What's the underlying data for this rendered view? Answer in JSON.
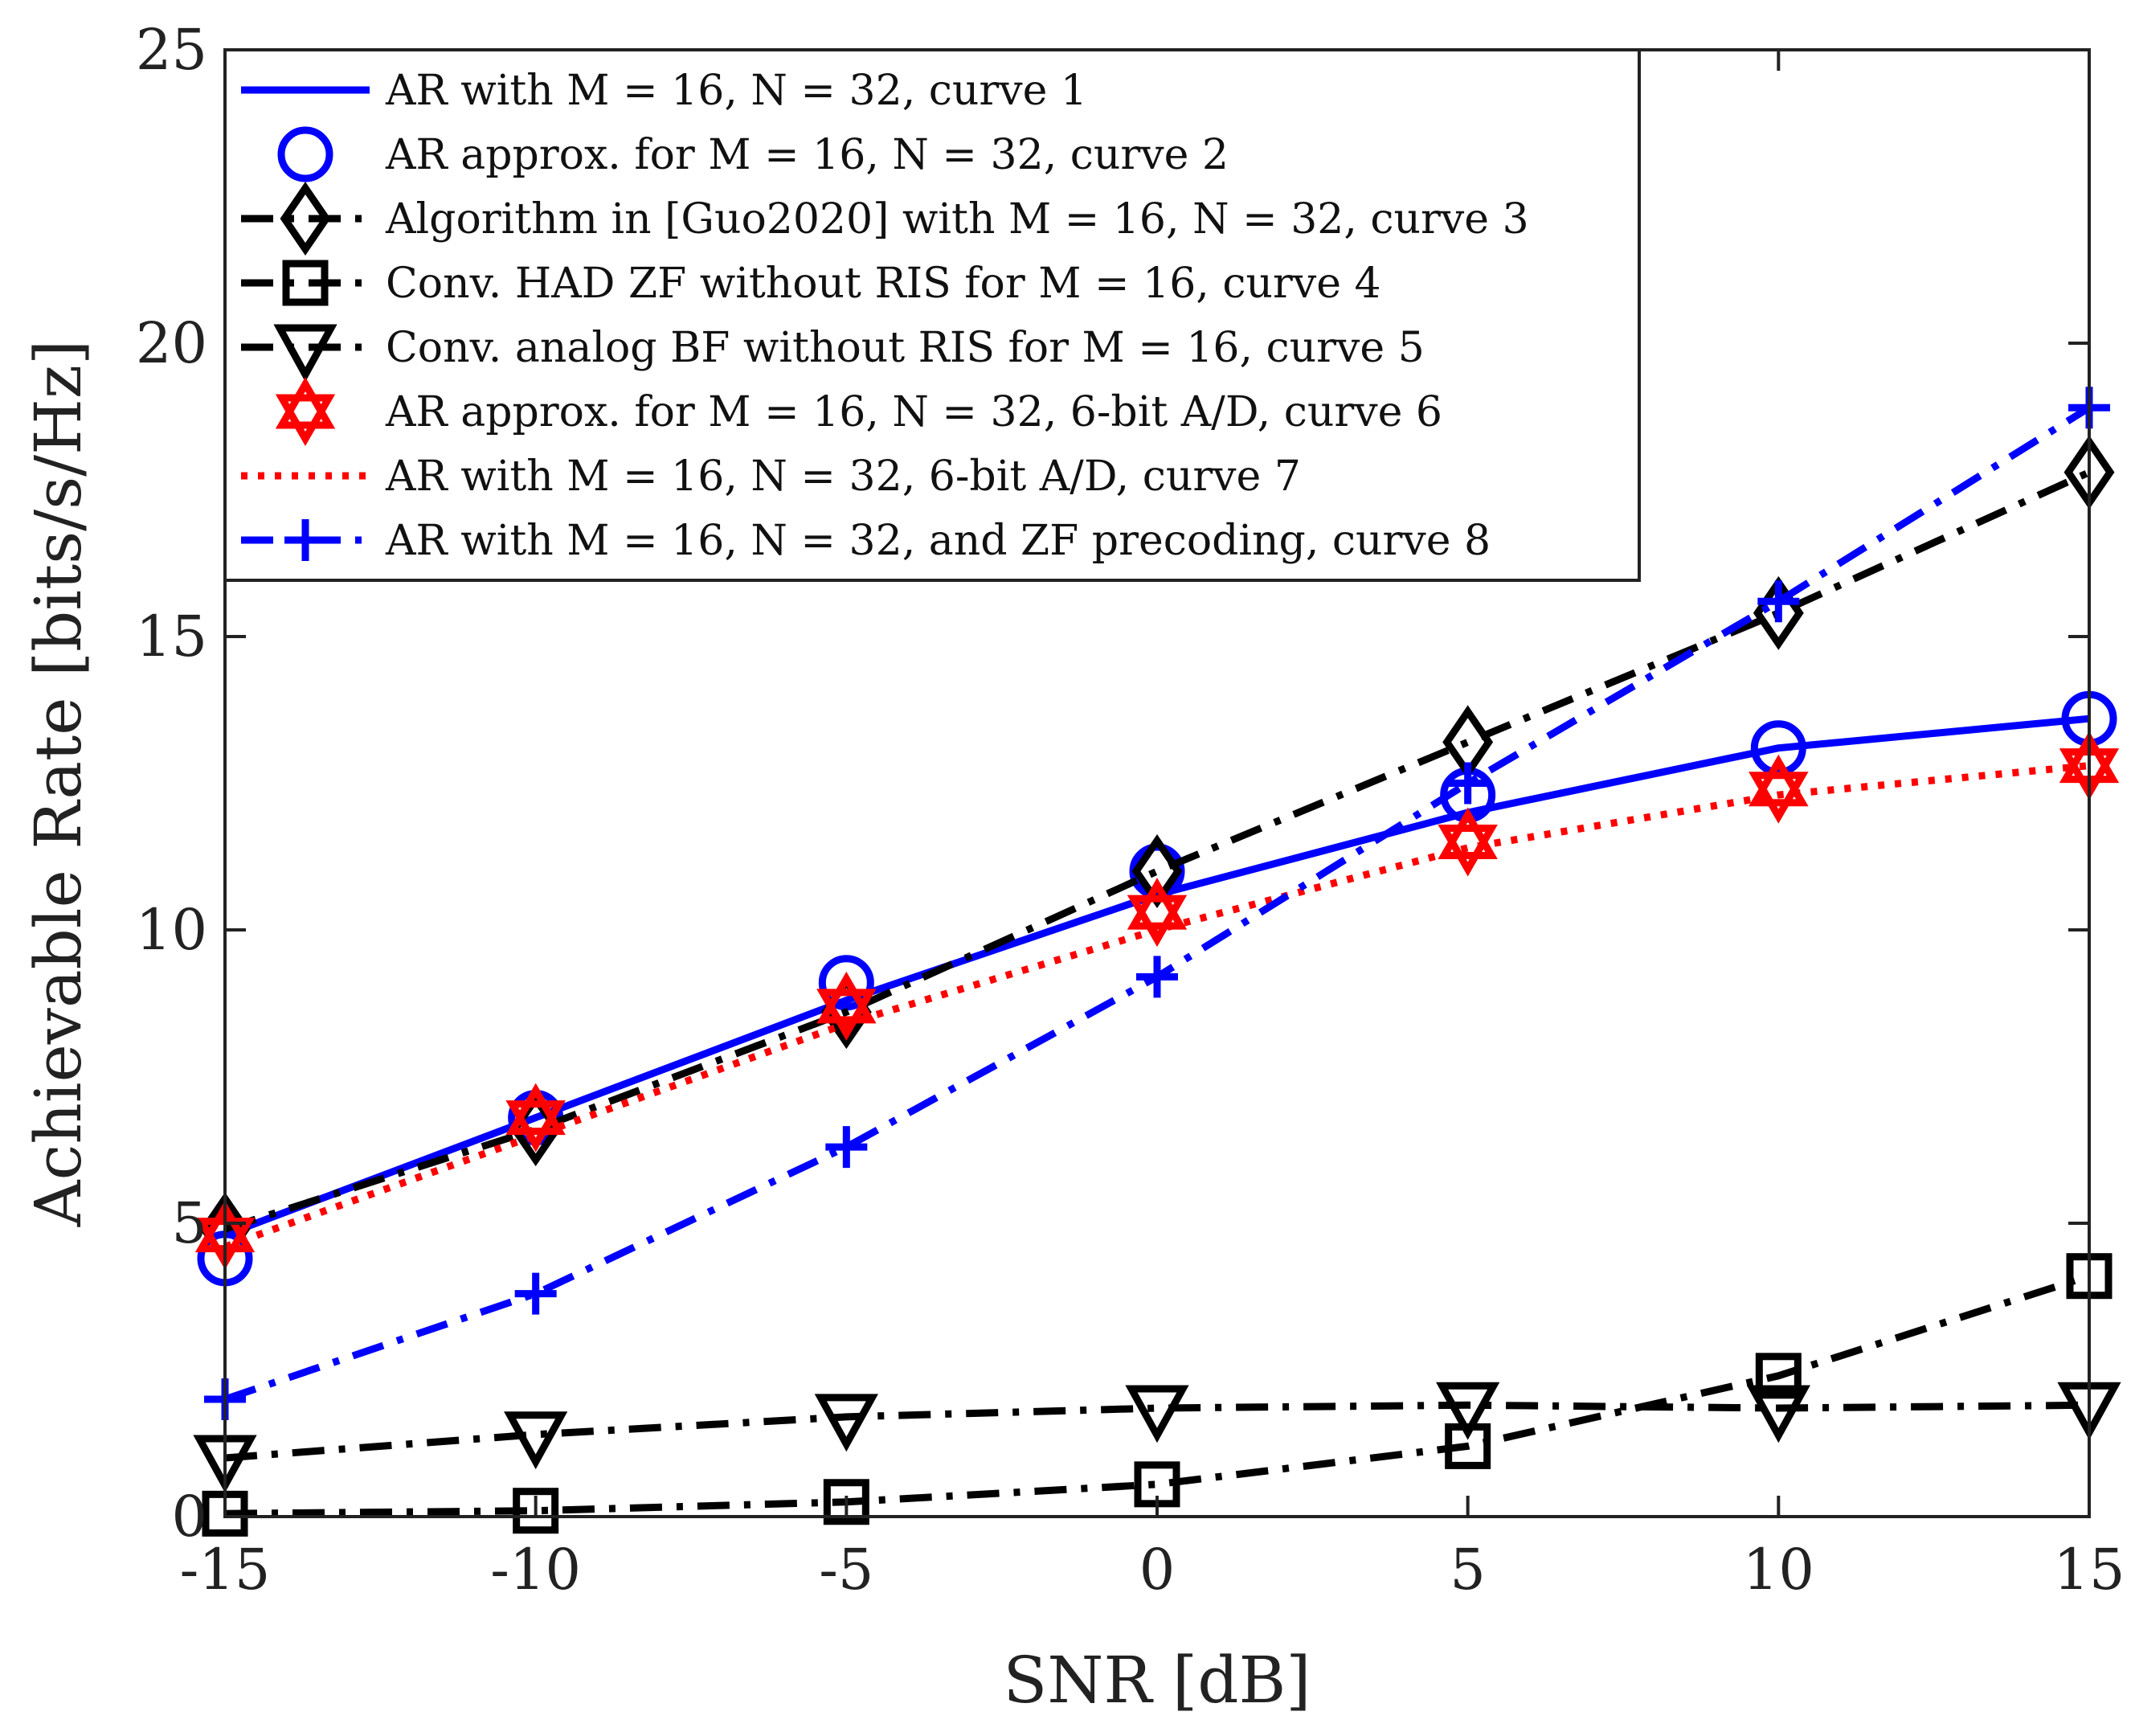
{
  "chart_data": {
    "type": "line",
    "title": "",
    "xlabel": "SNR [dB]",
    "ylabel": "Achievable Rate [bits/s/Hz]",
    "xlim": [
      -15,
      15
    ],
    "ylim": [
      0,
      25
    ],
    "xticks": [
      -15,
      -10,
      -5,
      0,
      5,
      10,
      15
    ],
    "yticks": [
      0,
      5,
      10,
      15,
      20,
      25
    ],
    "xtick_labels": [
      "-15",
      "-10",
      "-5",
      "0",
      "5",
      "10",
      "15"
    ],
    "ytick_labels": [
      "0",
      "5",
      "10",
      "15",
      "20",
      "25"
    ],
    "grid": false,
    "legend_position": "top-left",
    "x": [
      -15,
      -10,
      -5,
      0,
      5,
      10,
      15
    ],
    "series": [
      {
        "name": "AR with M = 16, N = 32, curve 1",
        "values": [
          4.8,
          6.8,
          8.8,
          10.6,
          12.0,
          13.1,
          13.6
        ],
        "color": "#0000ff",
        "line": "solid",
        "marker": "none"
      },
      {
        "name": "AR approx. for M = 16, N = 32, curve 2",
        "values": [
          4.4,
          6.8,
          9.1,
          11.0,
          12.3,
          13.1,
          13.6
        ],
        "color": "#0000ff",
        "line": "none",
        "marker": "circle"
      },
      {
        "name": "Algorithm in [Guo2020] with M = 16, N = 32, curve 3",
        "values": [
          4.9,
          6.6,
          8.6,
          11.0,
          13.2,
          15.4,
          17.8
        ],
        "color": "#000000",
        "line": "dashdot",
        "marker": "diamond"
      },
      {
        "name": "Conv. HAD ZF without RIS for M = 16, curve 4",
        "values": [
          0.05,
          0.1,
          0.25,
          0.55,
          1.2,
          2.4,
          4.1
        ],
        "color": "#000000",
        "line": "dashdot",
        "marker": "square"
      },
      {
        "name": "Conv. analog BF without RIS for M = 16, curve 5",
        "values": [
          1.0,
          1.4,
          1.7,
          1.85,
          1.9,
          1.85,
          1.9
        ],
        "color": "#000000",
        "line": "dashdot",
        "marker": "triangle-down"
      },
      {
        "name": "AR approx. for M = 16, N = 32, 6-bit A/D, curve 6",
        "values": [
          4.8,
          6.8,
          8.7,
          10.3,
          11.5,
          12.4,
          12.8
        ],
        "color": "#ff0000",
        "line": "none",
        "marker": "hexagram"
      },
      {
        "name": "AR with M = 16, N = 32, 6-bit A/D, curve 7",
        "values": [
          4.6,
          6.5,
          8.4,
          10.0,
          11.4,
          12.3,
          12.8
        ],
        "color": "#ff0000",
        "line": "dotted",
        "marker": "none"
      },
      {
        "name": "AR with M = 16, N = 32, and ZF precoding, curve 8",
        "values": [
          2.0,
          3.8,
          6.3,
          9.2,
          12.5,
          15.6,
          18.9
        ],
        "color": "#0000ff",
        "line": "dashdot",
        "marker": "plus"
      }
    ]
  }
}
